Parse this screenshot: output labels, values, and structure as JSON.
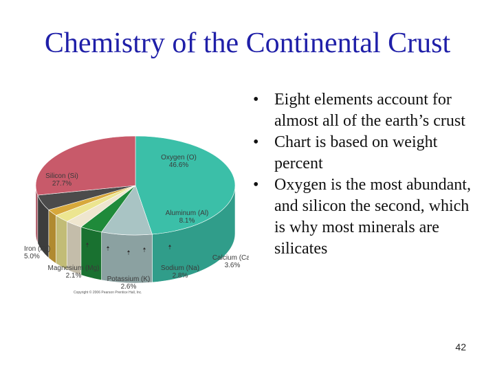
{
  "slide": {
    "title": "Chemistry of the Continental Crust",
    "bullets": [
      "Eight elements account for almost all of the earth’s crust",
      "Chart is based on weight percent",
      "Oxygen is the most abundant, and silicon the second, which is why most minerals are silicates"
    ],
    "bullet_glyph": "•",
    "slide_number": "42"
  },
  "chart_data": {
    "type": "pie",
    "title": "",
    "slices": [
      {
        "name": "Oxygen (O)",
        "value": 46.6,
        "label": "46.6%",
        "color": "#3bbfa8"
      },
      {
        "name": "Aluminum (Al)",
        "value": 8.1,
        "label": "8.1%",
        "color": "#a9c4c4"
      },
      {
        "name": "Calcium (Ca)",
        "value": 3.6,
        "label": "3.6%",
        "color": "#1f8a3a"
      },
      {
        "name": "Sodium (Na)",
        "value": 2.8,
        "label": "2.8%",
        "color": "#efe6cf"
      },
      {
        "name": "Potassium (K)",
        "value": 2.6,
        "label": "2.6%",
        "color": "#ece590"
      },
      {
        "name": "Magnesium (Mg)",
        "value": 2.1,
        "label": "2.1%",
        "color": "#d7a83b"
      },
      {
        "name": "Iron (Fe)",
        "value": 5.0,
        "label": "5.0%",
        "color": "#4b4b4b"
      },
      {
        "name": "Silicon (Si)",
        "value": 27.7,
        "label": "27.7%",
        "color": "#c85a6a"
      }
    ],
    "copyright": "Copyright © 2006 Pearson Prentice Hall, Inc."
  }
}
